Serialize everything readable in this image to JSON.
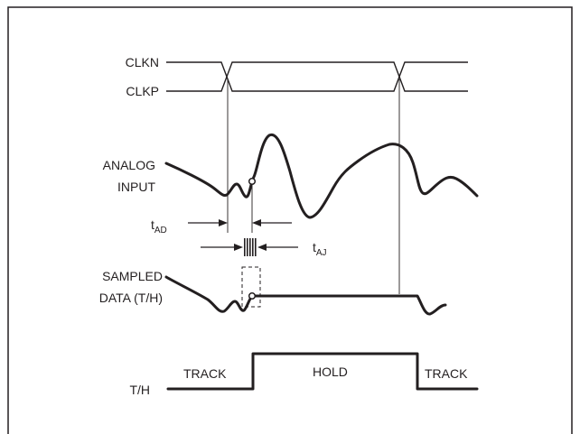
{
  "labels": {
    "clkn": "CLKN",
    "clkp": "CLKP",
    "analog_input_line1": "ANALOG",
    "analog_input_line2": "INPUT",
    "t_ad_main": "t",
    "t_ad_sub": "AD",
    "t_aj_main": "t",
    "t_aj_sub": "AJ",
    "sampled_data_line1": "SAMPLED",
    "sampled_data_line2": "DATA (T/H)",
    "th": "T/H",
    "track_left": "TRACK",
    "hold": "HOLD",
    "track_right": "TRACK"
  }
}
